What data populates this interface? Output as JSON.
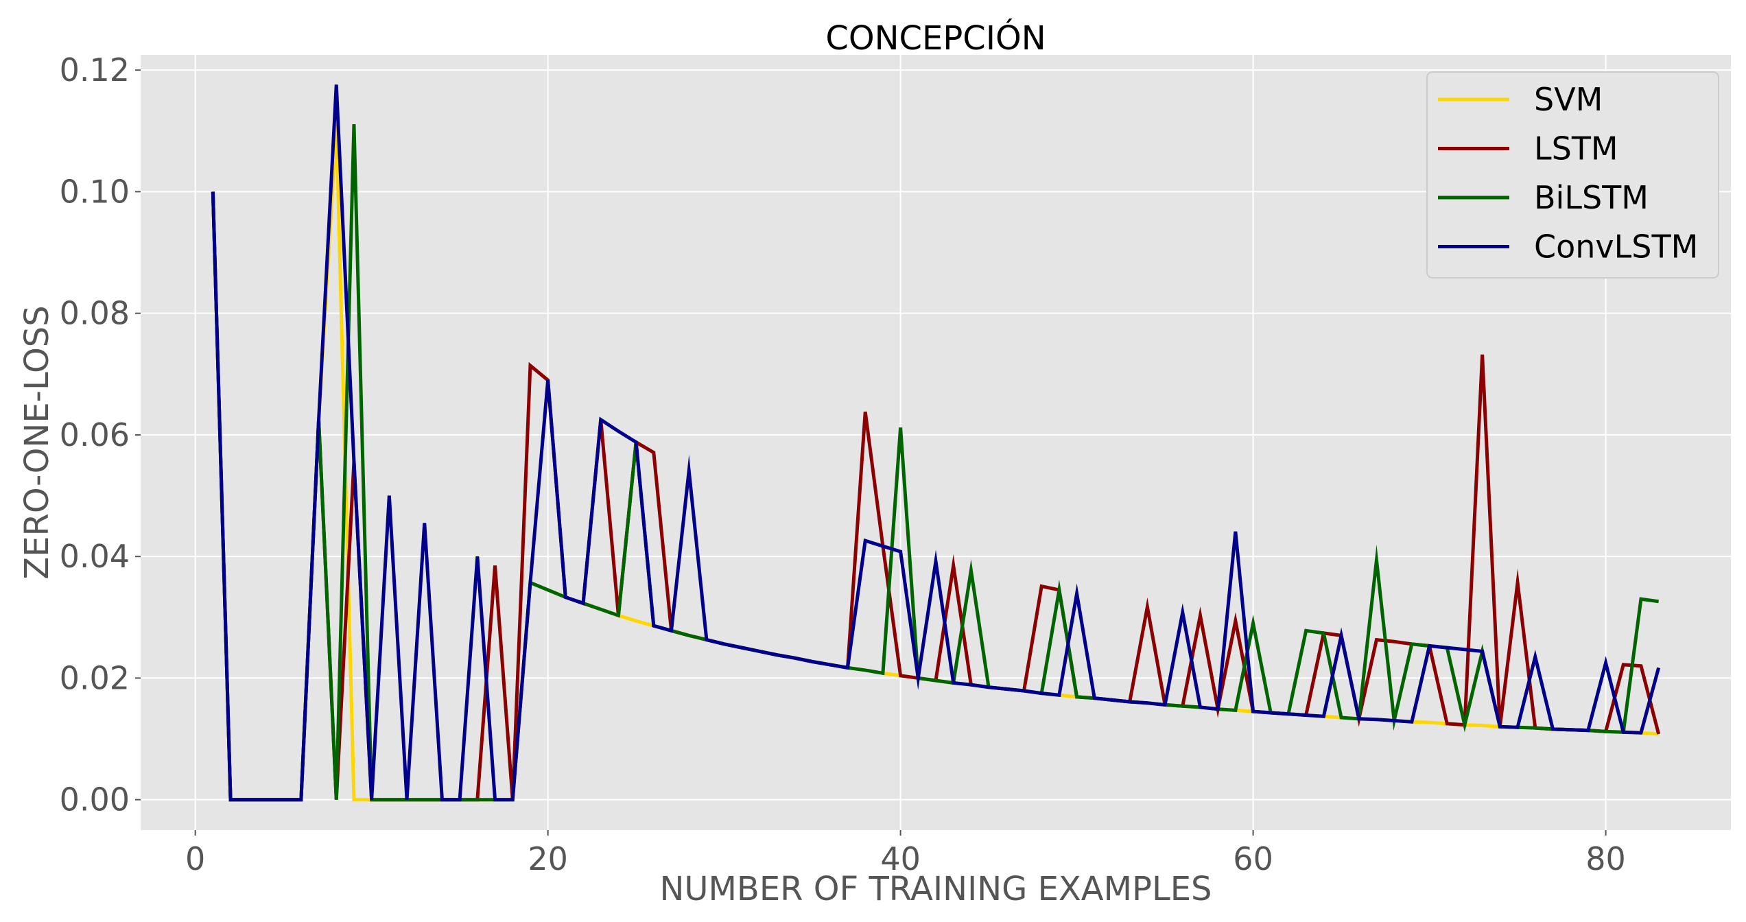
{
  "chart_data": {
    "type": "line",
    "title": "CONCEPCIÓN",
    "xlabel": "NUMBER OF TRAINING EXAMPLES",
    "ylabel": "ZERO-ONE-LOSS",
    "xlim": [
      -3.1,
      87.1
    ],
    "ylim": [
      -0.005,
      0.1225
    ],
    "xticks": [
      0,
      20,
      40,
      60,
      80
    ],
    "yticks": [
      0.0,
      0.02,
      0.04,
      0.06,
      0.08,
      0.1,
      0.12
    ],
    "ytick_labels": [
      "0.00",
      "0.02",
      "0.04",
      "0.06",
      "0.08",
      "0.10",
      "0.12"
    ],
    "grid": true,
    "legend_position": "top-right",
    "x": [
      1,
      2,
      3,
      4,
      5,
      6,
      7,
      8,
      9,
      10,
      11,
      12,
      13,
      14,
      15,
      16,
      17,
      18,
      19,
      20,
      21,
      22,
      23,
      24,
      25,
      26,
      27,
      28,
      29,
      30,
      31,
      32,
      33,
      34,
      35,
      36,
      37,
      38,
      39,
      40,
      41,
      42,
      43,
      44,
      45,
      46,
      47,
      48,
      49,
      50,
      51,
      52,
      53,
      54,
      55,
      56,
      57,
      58,
      59,
      60,
      61,
      62,
      63,
      64,
      65,
      66,
      67,
      68,
      69,
      70,
      71,
      72,
      73,
      74,
      75,
      76,
      77,
      78,
      79,
      80,
      81,
      82,
      83
    ],
    "series": [
      {
        "name": "SVM",
        "color": "#FFD700",
        "values": [
          0.1,
          0,
          0,
          0,
          0,
          0,
          0.0625,
          0.1111,
          0,
          0,
          0,
          0,
          0,
          0,
          0,
          0,
          0,
          0,
          0.0357,
          0.0345,
          0.0333,
          0.0323,
          0.0313,
          0.0303,
          0.0294,
          0.0286,
          0.0278,
          0.027,
          0.0263,
          0.0256,
          0.025,
          0.0244,
          0.0238,
          0.0233,
          0.0227,
          0.0222,
          0.0217,
          0.0213,
          0.0208,
          0.0204,
          0.02,
          0.0196,
          0.0192,
          0.0189,
          0.0185,
          0.0182,
          0.0179,
          0.0175,
          0.0172,
          0.0169,
          0.0167,
          0.0164,
          0.0161,
          0.0159,
          0.0156,
          0.0154,
          0.0152,
          0.0149,
          0.0147,
          0.0145,
          0.0143,
          0.0141,
          0.0139,
          0.0137,
          0.0135,
          0.0133,
          0.0132,
          0.013,
          0.0128,
          0.0127,
          0.0125,
          0.0123,
          0.0122,
          0.012,
          0.0119,
          0.0118,
          0.0116,
          0.0115,
          0.0114,
          0.0112,
          0.0111,
          0.011,
          0.0108
        ]
      },
      {
        "name": "LSTM",
        "color": "#8B0000",
        "values": [
          0.1,
          0,
          0,
          0,
          0,
          0,
          0.0625,
          0,
          0.0556,
          0,
          0,
          0,
          0,
          0,
          0,
          0,
          0.0385,
          0,
          0.0714,
          0.069,
          0.0333,
          0.0323,
          0.0625,
          0.0303,
          0.0588,
          0.0571,
          0.0278,
          0.027,
          0.0263,
          0.0256,
          0.025,
          0.0244,
          0.0238,
          0.0233,
          0.0227,
          0.0222,
          0.0217,
          0.0638,
          0.0417,
          0.0204,
          0.02,
          0.0196,
          0.0385,
          0.0189,
          0.0185,
          0.0182,
          0.0179,
          0.0351,
          0.0345,
          0.0169,
          0.0167,
          0.0164,
          0.0161,
          0.0317,
          0.0156,
          0.0154,
          0.0303,
          0.0149,
          0.0294,
          0.0145,
          0.0143,
          0.0141,
          0.0139,
          0.0274,
          0.027,
          0.0133,
          0.0263,
          0.026,
          0.0256,
          0.0253,
          0.0125,
          0.0123,
          0.0732,
          0.012,
          0.0357,
          0.0118,
          0.0116,
          0.0115,
          0.0114,
          0.0112,
          0.0222,
          0.022,
          0.0108
        ]
      },
      {
        "name": "BiLSTM",
        "color": "#006400",
        "values": [
          0.1,
          0,
          0,
          0,
          0,
          0,
          0.0625,
          0,
          0.1111,
          0,
          0,
          0,
          0,
          0,
          0,
          0,
          0,
          0,
          0.0357,
          0.0345,
          0.0333,
          0.0323,
          0.0313,
          0.0303,
          0.0588,
          0.0286,
          0.0278,
          0.027,
          0.0263,
          0.0256,
          0.025,
          0.0244,
          0.0238,
          0.0233,
          0.0227,
          0.0222,
          0.0217,
          0.0213,
          0.0208,
          0.0612,
          0.02,
          0.0196,
          0.0192,
          0.0377,
          0.0185,
          0.0182,
          0.0179,
          0.0175,
          0.0345,
          0.0169,
          0.0167,
          0.0164,
          0.0161,
          0.0159,
          0.0156,
          0.0154,
          0.0152,
          0.0149,
          0.0147,
          0.029,
          0.0143,
          0.0141,
          0.0278,
          0.0274,
          0.0135,
          0.0133,
          0.0394,
          0.013,
          0.0256,
          0.0253,
          0.025,
          0.0123,
          0.0244,
          0.012,
          0.0119,
          0.0118,
          0.0116,
          0.0115,
          0.0114,
          0.0112,
          0.0111,
          0.033,
          0.0326
        ]
      },
      {
        "name": "ConvLSTM",
        "color": "#00008B",
        "values": [
          0.1,
          0,
          0,
          0,
          0,
          0,
          0.0625,
          0.1176,
          0.0556,
          0,
          0.05,
          0,
          0.0455,
          0,
          0,
          0.04,
          0,
          0,
          0.0357,
          0.069,
          0.0333,
          0.0323,
          0.0625,
          0.0606,
          0.0588,
          0.0286,
          0.0278,
          0.0541,
          0.0263,
          0.0256,
          0.025,
          0.0244,
          0.0238,
          0.0233,
          0.0227,
          0.0222,
          0.0217,
          0.0426,
          0.0417,
          0.0408,
          0.02,
          0.0392,
          0.0192,
          0.0189,
          0.0185,
          0.0182,
          0.0179,
          0.0175,
          0.0172,
          0.0339,
          0.0167,
          0.0164,
          0.0161,
          0.0159,
          0.0156,
          0.0308,
          0.0152,
          0.0149,
          0.0441,
          0.0145,
          0.0143,
          0.0141,
          0.0139,
          0.0137,
          0.027,
          0.0133,
          0.0132,
          0.013,
          0.0128,
          0.0253,
          0.025,
          0.0247,
          0.0244,
          0.012,
          0.0119,
          0.0235,
          0.0116,
          0.0115,
          0.0114,
          0.0225,
          0.0111,
          0.011,
          0.0217
        ]
      }
    ]
  }
}
